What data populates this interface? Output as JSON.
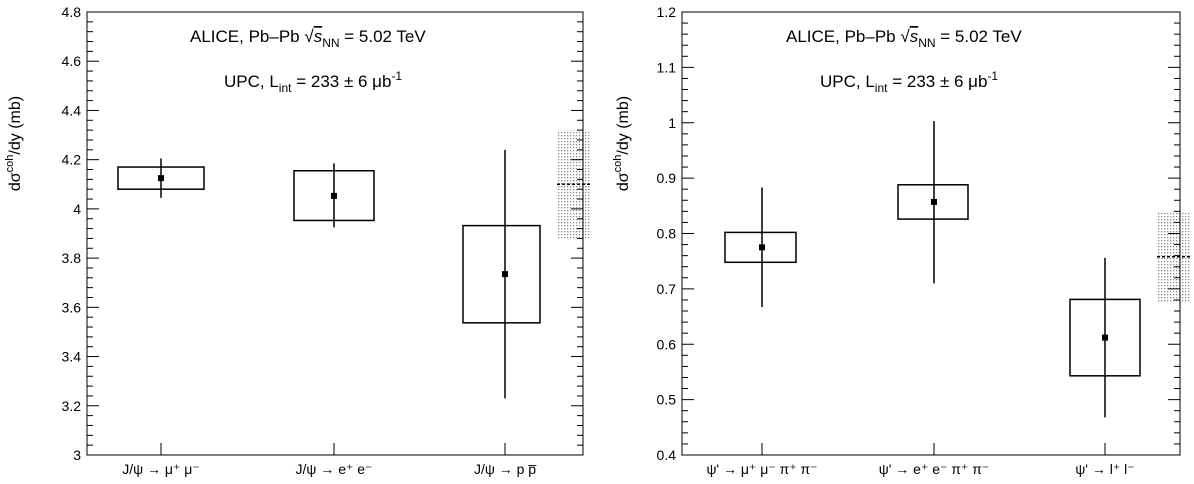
{
  "chart_data": [
    {
      "type": "scatter",
      "ylabel": {
        "main": "dσ",
        "sup": "coh",
        "rest": "/dy (mb)"
      },
      "ylim": [
        3.0,
        4.8
      ],
      "yticks": [
        3,
        3.2,
        3.4,
        3.6,
        3.8,
        4,
        4.2,
        4.4,
        4.6,
        4.8
      ],
      "ytick_labels": [
        "3",
        "3.2",
        "3.4",
        "3.6",
        "3.8",
        "4",
        "4.2",
        "4.4",
        "4.6",
        "4.8"
      ],
      "categories": [
        {
          "label": "J/ψ → μ⁺ μ⁻"
        },
        {
          "label": "J/ψ → e⁺ e⁻"
        },
        {
          "label": "J/ψ → p p̅"
        }
      ],
      "series": [
        {
          "values": [
            4.125,
            4.053,
            3.735
          ],
          "stat_err_low": [
            4.045,
            3.925,
            3.23
          ],
          "stat_err_high": [
            4.205,
            4.185,
            4.24
          ],
          "syst_low": [
            4.08,
            3.953,
            3.537
          ],
          "syst_high": [
            4.17,
            4.155,
            3.932
          ]
        }
      ],
      "average": {
        "value": 4.1,
        "band_low": 3.88,
        "band_high": 4.32
      },
      "annotation_line1": {
        "prefix": "ALICE, Pb–Pb ",
        "sqrt_sub": "NN",
        "suffix": " = 5.02 TeV"
      },
      "annotation_line2": {
        "prefix": "UPC, L",
        "sub": "int",
        "middle": " = 233 ± 6 μb",
        "sup": "-1"
      }
    },
    {
      "type": "scatter",
      "ylabel": {
        "main": "dσ",
        "sup": "coh",
        "rest": "/dy (mb)"
      },
      "ylim": [
        0.4,
        1.2
      ],
      "yticks": [
        0.4,
        0.5,
        0.6,
        0.7,
        0.8,
        0.9,
        1.0,
        1.1,
        1.2
      ],
      "ytick_labels": [
        "0.4",
        "0.5",
        "0.6",
        "0.7",
        "0.8",
        "0.9",
        "1",
        "1.1",
        "1.2"
      ],
      "categories": [
        {
          "label": "ψ' → μ⁺ μ⁻ π⁺ π⁻"
        },
        {
          "label": "ψ' → e⁺ e⁻ π⁺ π⁻"
        },
        {
          "label": "ψ' → l⁺ l⁻"
        }
      ],
      "series": [
        {
          "values": [
            0.775,
            0.857,
            0.612
          ],
          "stat_err_low": [
            0.667,
            0.71,
            0.468
          ],
          "stat_err_high": [
            0.883,
            1.003,
            0.756
          ],
          "syst_low": [
            0.748,
            0.826,
            0.543
          ],
          "syst_high": [
            0.802,
            0.888,
            0.681
          ]
        }
      ],
      "average": {
        "value": 0.758,
        "band_low": 0.676,
        "band_high": 0.84
      },
      "annotation_line1": {
        "prefix": "ALICE, Pb–Pb ",
        "sqrt_sub": "NN",
        "suffix": " = 5.02 TeV"
      },
      "annotation_line2": {
        "prefix": "UPC, L",
        "sub": "int",
        "middle": " = 233 ± 6 μb",
        "sup": "-1"
      }
    }
  ]
}
